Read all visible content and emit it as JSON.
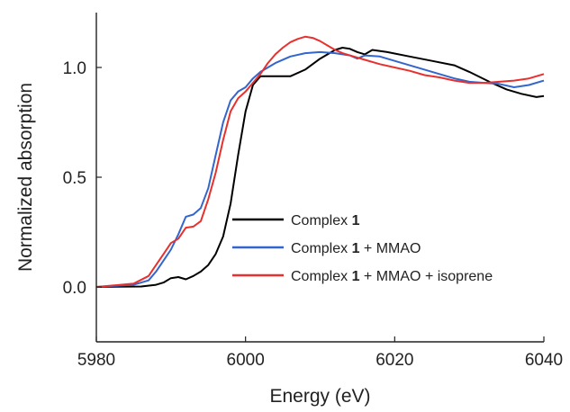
{
  "chart_data": {
    "type": "line",
    "xlabel": "Energy (eV)",
    "ylabel": "Normalized absorption",
    "xlim": [
      5980,
      6040
    ],
    "ylim": [
      -0.25,
      1.25
    ],
    "xticks": [
      "5980",
      "6000",
      "6020",
      "6040"
    ],
    "xtick_values": [
      5980,
      6000,
      6020,
      6040
    ],
    "yticks": [
      "0.0",
      "0.5",
      "1.0"
    ],
    "ytick_values": [
      0.0,
      0.5,
      1.0
    ],
    "grid": false,
    "legend_position": "lower-right",
    "series": [
      {
        "name_parts": [
          "Complex ",
          "1",
          ""
        ],
        "color": "#000000",
        "points": [
          [
            5980,
            0.0
          ],
          [
            5986,
            0.002
          ],
          [
            5988,
            0.01
          ],
          [
            5989,
            0.02
          ],
          [
            5990,
            0.04
          ],
          [
            5991,
            0.045
          ],
          [
            5992,
            0.035
          ],
          [
            5993,
            0.05
          ],
          [
            5994,
            0.07
          ],
          [
            5995,
            0.1
          ],
          [
            5996,
            0.15
          ],
          [
            5997,
            0.23
          ],
          [
            5998,
            0.38
          ],
          [
            5999,
            0.6
          ],
          [
            6000,
            0.8
          ],
          [
            6001,
            0.92
          ],
          [
            6002,
            0.96
          ],
          [
            6004,
            0.96
          ],
          [
            6006,
            0.96
          ],
          [
            6008,
            0.99
          ],
          [
            6010,
            1.04
          ],
          [
            6012,
            1.08
          ],
          [
            6013,
            1.09
          ],
          [
            6014,
            1.085
          ],
          [
            6015,
            1.07
          ],
          [
            6016,
            1.06
          ],
          [
            6017,
            1.08
          ],
          [
            6019,
            1.07
          ],
          [
            6022,
            1.05
          ],
          [
            6025,
            1.03
          ],
          [
            6028,
            1.01
          ],
          [
            6030,
            0.98
          ],
          [
            6033,
            0.93
          ],
          [
            6035,
            0.9
          ],
          [
            6037,
            0.88
          ],
          [
            6039,
            0.865
          ],
          [
            6040,
            0.87
          ]
        ]
      },
      {
        "name_parts": [
          "Complex ",
          "1",
          " + MMAO"
        ],
        "color": "#3366cc",
        "points": [
          [
            5980,
            0.0
          ],
          [
            5985,
            0.01
          ],
          [
            5987,
            0.03
          ],
          [
            5988,
            0.07
          ],
          [
            5989,
            0.12
          ],
          [
            5990,
            0.17
          ],
          [
            5991,
            0.24
          ],
          [
            5992,
            0.32
          ],
          [
            5993,
            0.33
          ],
          [
            5994,
            0.36
          ],
          [
            5995,
            0.45
          ],
          [
            5996,
            0.6
          ],
          [
            5997,
            0.75
          ],
          [
            5998,
            0.85
          ],
          [
            5999,
            0.89
          ],
          [
            6000,
            0.91
          ],
          [
            6001,
            0.95
          ],
          [
            6002,
            0.98
          ],
          [
            6004,
            1.02
          ],
          [
            6006,
            1.05
          ],
          [
            6008,
            1.065
          ],
          [
            6010,
            1.07
          ],
          [
            6012,
            1.065
          ],
          [
            6014,
            1.055
          ],
          [
            6015,
            1.04
          ],
          [
            6016,
            1.055
          ],
          [
            6018,
            1.05
          ],
          [
            6020,
            1.03
          ],
          [
            6022,
            1.01
          ],
          [
            6024,
            0.99
          ],
          [
            6026,
            0.97
          ],
          [
            6028,
            0.95
          ],
          [
            6030,
            0.935
          ],
          [
            6032,
            0.93
          ],
          [
            6034,
            0.925
          ],
          [
            6036,
            0.91
          ],
          [
            6038,
            0.92
          ],
          [
            6040,
            0.94
          ]
        ]
      },
      {
        "name_parts": [
          "Complex ",
          "1",
          " + MMAO + isoprene"
        ],
        "color": "#e8302e",
        "points": [
          [
            5980,
            0.0
          ],
          [
            5985,
            0.015
          ],
          [
            5987,
            0.05
          ],
          [
            5988,
            0.1
          ],
          [
            5989,
            0.15
          ],
          [
            5990,
            0.2
          ],
          [
            5991,
            0.22
          ],
          [
            5992,
            0.27
          ],
          [
            5993,
            0.275
          ],
          [
            5994,
            0.3
          ],
          [
            5995,
            0.4
          ],
          [
            5996,
            0.52
          ],
          [
            5997,
            0.67
          ],
          [
            5998,
            0.8
          ],
          [
            5999,
            0.86
          ],
          [
            6000,
            0.89
          ],
          [
            6001,
            0.93
          ],
          [
            6002,
            0.97
          ],
          [
            6003,
            1.02
          ],
          [
            6004,
            1.06
          ],
          [
            6005,
            1.09
          ],
          [
            6006,
            1.115
          ],
          [
            6007,
            1.13
          ],
          [
            6008,
            1.14
          ],
          [
            6009,
            1.135
          ],
          [
            6010,
            1.12
          ],
          [
            6011,
            1.1
          ],
          [
            6012,
            1.08
          ],
          [
            6013,
            1.065
          ],
          [
            6014,
            1.055
          ],
          [
            6016,
            1.035
          ],
          [
            6018,
            1.015
          ],
          [
            6020,
            1.0
          ],
          [
            6022,
            0.985
          ],
          [
            6024,
            0.965
          ],
          [
            6026,
            0.955
          ],
          [
            6028,
            0.94
          ],
          [
            6030,
            0.93
          ],
          [
            6032,
            0.93
          ],
          [
            6034,
            0.935
          ],
          [
            6036,
            0.94
          ],
          [
            6038,
            0.95
          ],
          [
            6040,
            0.97
          ]
        ]
      }
    ]
  }
}
